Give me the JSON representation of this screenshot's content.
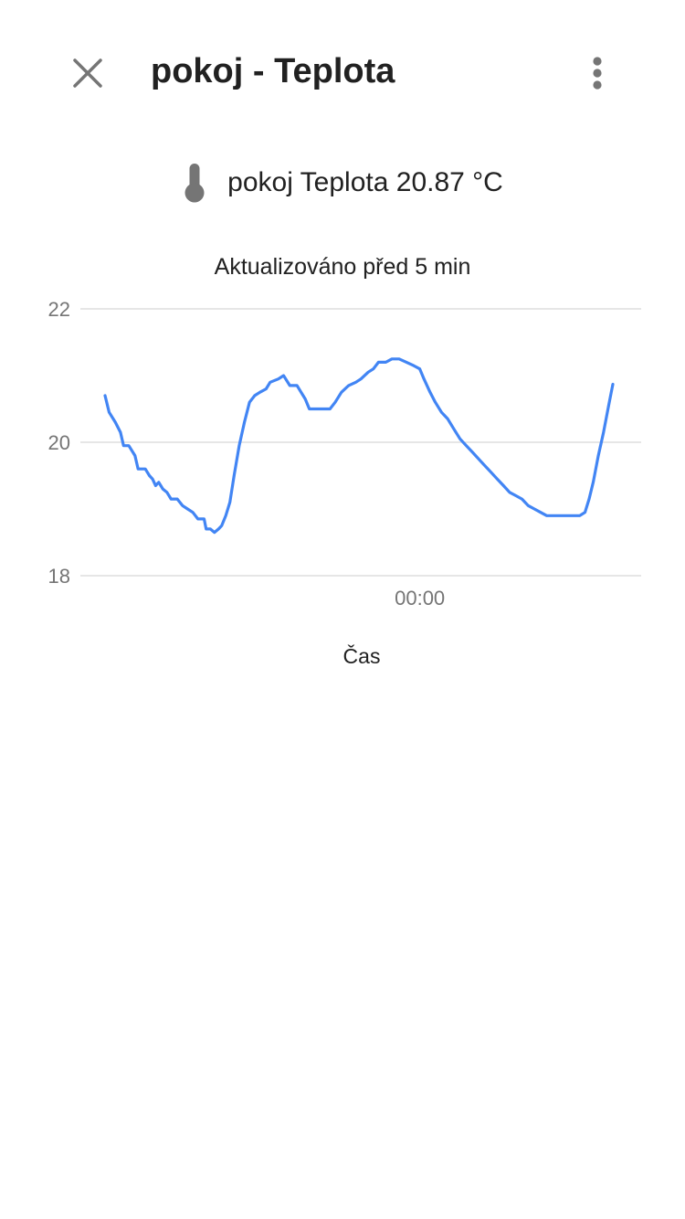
{
  "header": {
    "title": "pokoj - Teplota",
    "close_icon": "close-icon",
    "menu_icon": "more-vert-icon"
  },
  "state": {
    "icon": "thermometer-icon",
    "text": "pokoj Teplota 20.87 °C"
  },
  "updated_text": "Aktualizováno před 5 min",
  "colors": {
    "line": "#4285f4",
    "grid": "#dddddd",
    "icon": "#757575",
    "axis_text": "#757575"
  },
  "chart_data": {
    "type": "line",
    "title": "",
    "xlabel": "Čas",
    "ylabel": "",
    "ylim": [
      18,
      22
    ],
    "yticks": [
      18,
      20,
      22
    ],
    "xticks": [
      {
        "x": 0.61,
        "label": "00:00"
      }
    ],
    "xlim": [
      0,
      1
    ],
    "grid": true,
    "series": [
      {
        "color": "#4285f4",
        "points": [
          [
            0.0,
            20.7
          ],
          [
            0.008,
            20.45
          ],
          [
            0.02,
            20.3
          ],
          [
            0.03,
            20.15
          ],
          [
            0.036,
            19.95
          ],
          [
            0.046,
            19.95
          ],
          [
            0.058,
            19.8
          ],
          [
            0.064,
            19.6
          ],
          [
            0.078,
            19.6
          ],
          [
            0.086,
            19.5
          ],
          [
            0.092,
            19.45
          ],
          [
            0.098,
            19.35
          ],
          [
            0.104,
            19.4
          ],
          [
            0.112,
            19.3
          ],
          [
            0.12,
            19.25
          ],
          [
            0.128,
            19.15
          ],
          [
            0.14,
            19.15
          ],
          [
            0.15,
            19.05
          ],
          [
            0.16,
            19.0
          ],
          [
            0.17,
            18.95
          ],
          [
            0.18,
            18.85
          ],
          [
            0.192,
            18.85
          ],
          [
            0.196,
            18.7
          ],
          [
            0.204,
            18.7
          ],
          [
            0.212,
            18.65
          ],
          [
            0.22,
            18.7
          ],
          [
            0.226,
            18.75
          ],
          [
            0.234,
            18.9
          ],
          [
            0.242,
            19.1
          ],
          [
            0.25,
            19.5
          ],
          [
            0.26,
            19.95
          ],
          [
            0.27,
            20.3
          ],
          [
            0.28,
            20.6
          ],
          [
            0.29,
            20.7
          ],
          [
            0.3,
            20.75
          ],
          [
            0.312,
            20.8
          ],
          [
            0.32,
            20.9
          ],
          [
            0.336,
            20.95
          ],
          [
            0.346,
            21.0
          ],
          [
            0.35,
            20.95
          ],
          [
            0.358,
            20.85
          ],
          [
            0.372,
            20.85
          ],
          [
            0.38,
            20.75
          ],
          [
            0.388,
            20.65
          ],
          [
            0.396,
            20.5
          ],
          [
            0.408,
            20.5
          ],
          [
            0.42,
            20.5
          ],
          [
            0.436,
            20.5
          ],
          [
            0.446,
            20.6
          ],
          [
            0.458,
            20.75
          ],
          [
            0.472,
            20.85
          ],
          [
            0.486,
            20.9
          ],
          [
            0.496,
            20.95
          ],
          [
            0.51,
            21.05
          ],
          [
            0.52,
            21.1
          ],
          [
            0.53,
            21.2
          ],
          [
            0.544,
            21.2
          ],
          [
            0.556,
            21.25
          ],
          [
            0.57,
            21.25
          ],
          [
            0.584,
            21.2
          ],
          [
            0.598,
            21.15
          ],
          [
            0.61,
            21.1
          ],
          [
            0.618,
            20.95
          ],
          [
            0.63,
            20.75
          ],
          [
            0.64,
            20.6
          ],
          [
            0.652,
            20.45
          ],
          [
            0.664,
            20.35
          ],
          [
            0.676,
            20.2
          ],
          [
            0.688,
            20.05
          ],
          [
            0.7,
            19.95
          ],
          [
            0.712,
            19.85
          ],
          [
            0.724,
            19.75
          ],
          [
            0.736,
            19.65
          ],
          [
            0.748,
            19.55
          ],
          [
            0.76,
            19.45
          ],
          [
            0.772,
            19.35
          ],
          [
            0.784,
            19.25
          ],
          [
            0.796,
            19.2
          ],
          [
            0.808,
            19.15
          ],
          [
            0.82,
            19.05
          ],
          [
            0.832,
            19.0
          ],
          [
            0.844,
            18.95
          ],
          [
            0.856,
            18.9
          ],
          [
            0.868,
            18.9
          ],
          [
            0.88,
            18.9
          ],
          [
            0.89,
            18.9
          ],
          [
            0.9,
            18.9
          ],
          [
            0.91,
            18.9
          ],
          [
            0.92,
            18.9
          ],
          [
            0.93,
            18.95
          ],
          [
            0.938,
            19.15
          ],
          [
            0.946,
            19.4
          ],
          [
            0.956,
            19.8
          ],
          [
            0.966,
            20.15
          ],
          [
            0.976,
            20.55
          ],
          [
            0.984,
            20.87
          ]
        ]
      }
    ]
  }
}
